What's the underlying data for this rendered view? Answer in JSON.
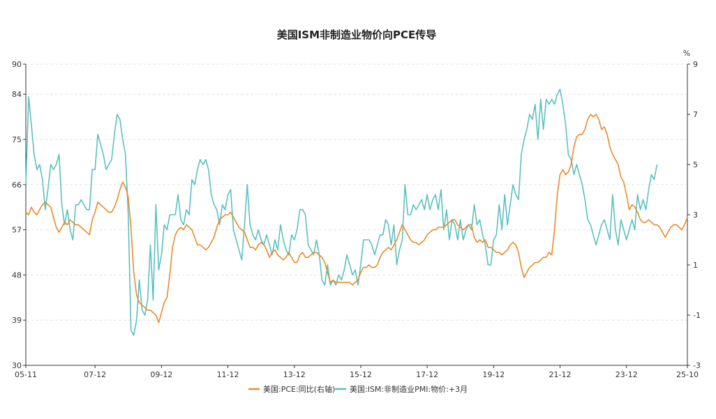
{
  "chart_data": {
    "type": "line",
    "title": "美国ISM非制造业物价向PCE传导",
    "right_unit": "%",
    "left_axis": {
      "ylim": [
        30,
        90
      ],
      "ticks": [
        30,
        39,
        48,
        57,
        66,
        75,
        84,
        90
      ]
    },
    "right_axis": {
      "ylim": [
        -3,
        9
      ],
      "ticks": [
        -3,
        -1,
        1,
        3,
        5,
        7,
        9
      ]
    },
    "x_range": [
      "2005-11",
      "2025-10"
    ],
    "x_tick_labels": [
      "05-11",
      "07-12",
      "09-12",
      "11-12",
      "13-12",
      "15-12",
      "17-12",
      "19-12",
      "21-12",
      "23-12",
      "25-10"
    ],
    "grid": true,
    "legend_position": "bottom",
    "colors": {
      "pce": "#E98B2A",
      "ism": "#5BC0C0"
    },
    "series": [
      {
        "name": "美国:PCE:同比(右轴)",
        "axis": "right",
        "color": "#E98B2A",
        "start": "2005-11",
        "values": [
          3.1,
          3.0,
          3.3,
          3.1,
          3.0,
          3.2,
          3.4,
          3.5,
          3.4,
          3.3,
          2.9,
          2.5,
          2.3,
          2.5,
          2.7,
          2.6,
          2.8,
          2.7,
          2.6,
          2.6,
          2.5,
          2.4,
          2.3,
          2.2,
          2.8,
          3.1,
          3.5,
          3.4,
          3.3,
          3.2,
          3.1,
          3.1,
          3.3,
          3.6,
          4.0,
          4.3,
          4.1,
          3.7,
          2.5,
          0.7,
          -0.2,
          -0.5,
          -0.6,
          -0.7,
          -0.8,
          -0.8,
          -0.9,
          -1.0,
          -1.3,
          -0.9,
          -0.5,
          -0.3,
          0.6,
          1.7,
          2.2,
          2.4,
          2.5,
          2.4,
          2.6,
          2.5,
          2.4,
          2.1,
          1.8,
          1.8,
          1.7,
          1.6,
          1.7,
          1.9,
          2.1,
          2.5,
          2.8,
          2.9,
          3.0,
          3.0,
          3.1,
          2.9,
          2.7,
          2.5,
          2.4,
          2.3,
          2.0,
          1.7,
          1.7,
          1.6,
          1.8,
          1.9,
          1.8,
          1.6,
          1.3,
          1.5,
          1.6,
          1.4,
          1.3,
          1.2,
          1.3,
          1.5,
          1.3,
          1.1,
          1.1,
          1.4,
          1.5,
          1.3,
          1.3,
          1.4,
          1.5,
          1.5,
          1.4,
          1.3,
          1.1,
          0.7,
          0.3,
          0.4,
          0.3,
          0.3,
          0.3,
          0.3,
          0.3,
          0.3,
          0.2,
          0.3,
          0.4,
          0.7,
          0.9,
          0.9,
          1.0,
          0.9,
          0.9,
          1.0,
          1.3,
          1.5,
          1.6,
          1.7,
          1.6,
          1.8,
          2.0,
          2.3,
          2.6,
          2.4,
          2.2,
          2.0,
          1.9,
          1.9,
          1.8,
          1.9,
          2.0,
          2.2,
          2.3,
          2.4,
          2.4,
          2.5,
          2.5,
          2.5,
          2.6,
          2.7,
          2.8,
          2.8,
          2.6,
          2.5,
          2.4,
          2.5,
          2.6,
          2.6,
          2.1,
          1.9,
          2.0,
          1.9,
          2.0,
          1.7,
          1.7,
          1.6,
          1.5,
          1.5,
          1.4,
          1.5,
          1.6,
          1.8,
          1.9,
          1.8,
          1.5,
          0.9,
          0.5,
          0.7,
          0.9,
          1.0,
          1.1,
          1.1,
          1.2,
          1.3,
          1.3,
          1.5,
          1.4,
          2.4,
          3.8,
          4.6,
          4.8,
          4.6,
          4.7,
          5.0,
          5.7,
          6.1,
          6.2,
          6.2,
          6.4,
          6.8,
          7.0,
          6.9,
          7.0,
          6.8,
          6.4,
          6.5,
          6.2,
          5.7,
          5.4,
          5.2,
          5.0,
          4.5,
          4.3,
          3.8,
          3.2,
          3.4,
          3.3,
          3.1,
          2.8,
          2.7,
          2.7,
          2.8,
          2.7,
          2.6,
          2.6,
          2.5,
          2.3,
          2.1,
          2.3,
          2.5,
          2.6,
          2.6,
          2.5,
          2.4,
          2.6,
          2.9
        ]
      },
      {
        "name": "美国:ISM:非制造业PMI:物价:+3月",
        "axis": "left",
        "color": "#5BC0C0",
        "start": "2005-11",
        "values": [
          66.0,
          83.5,
          78.0,
          72.0,
          69.0,
          70.0,
          67.0,
          61.0,
          65.0,
          70.0,
          69.0,
          70.0,
          72.0,
          62.0,
          58.0,
          61.0,
          57.0,
          55.0,
          62.0,
          62.0,
          63.0,
          62.0,
          61.0,
          61.0,
          69.0,
          69.0,
          76.0,
          74.0,
          72.0,
          69.0,
          70.0,
          71.0,
          76.0,
          80.0,
          79.0,
          75.0,
          72.0,
          60.0,
          37.0,
          36.0,
          39.0,
          47.0,
          41.0,
          40.0,
          43.0,
          54.0,
          43.0,
          62.0,
          49.0,
          52.0,
          58.0,
          57.0,
          60.0,
          60.0,
          60.0,
          64.0,
          59.0,
          58.0,
          61.0,
          60.0,
          67.0,
          66.0,
          69.0,
          71.0,
          70.0,
          71.0,
          69.0,
          64.0,
          62.0,
          61.0,
          58.0,
          62.0,
          61.0,
          64.0,
          65.0,
          57.0,
          55.0,
          53.0,
          51.0,
          58.0,
          66.0,
          58.0,
          56.0,
          55.0,
          57.0,
          55.0,
          54.0,
          56.0,
          54.0,
          52.0,
          55.0,
          53.0,
          58.0,
          55.0,
          53.0,
          52.0,
          56.0,
          55.0,
          57.0,
          61.0,
          61.0,
          60.0,
          54.0,
          53.0,
          52.0,
          55.0,
          52.0,
          47.0,
          46.0,
          50.0,
          46.0,
          47.0,
          46.0,
          48.0,
          47.0,
          49.0,
          52.0,
          50.0,
          48.0,
          49.0,
          46.0,
          50.0,
          55.0,
          55.0,
          55.0,
          54.0,
          52.0,
          54.0,
          56.0,
          56.0,
          59.0,
          58.0,
          54.0,
          58.0,
          50.0,
          53.0,
          55.0,
          66.0,
          60.0,
          60.0,
          62.0,
          61.0,
          62.0,
          63.0,
          61.0,
          64.0,
          61.0,
          63.0,
          64.0,
          61.0,
          65.0,
          57.0,
          61.0,
          55.0,
          59.0,
          58.0,
          55.0,
          59.0,
          55.0,
          57.0,
          58.0,
          57.0,
          62.0,
          58.0,
          59.0,
          56.0,
          54.0,
          50.0,
          50.0,
          55.0,
          56.0,
          62.0,
          57.0,
          64.0,
          58.0,
          62.0,
          66.0,
          64.0,
          63.0,
          72.0,
          75.0,
          77.0,
          80.0,
          79.0,
          82.0,
          75.0,
          83.0,
          77.0,
          83.0,
          82.0,
          83.0,
          82.0,
          84.0,
          85.0,
          82.0,
          78.0,
          72.0,
          71.0,
          68.0,
          70.0,
          68.0,
          66.0,
          63.0,
          59.0,
          58.0,
          56.0,
          54.0,
          56.0,
          58.0,
          59.0,
          57.0,
          55.0,
          64.0,
          57.0,
          54.0,
          59.0,
          57.0,
          55.0,
          57.0,
          59.0,
          57.0,
          64.0,
          61.0,
          63.0,
          61.0,
          65.0,
          68.0,
          67.0,
          70.0
        ]
      }
    ],
    "legend": [
      "美国:PCE:同比(右轴)",
      "美国:ISM:非制造业PMI:物价:+3月"
    ]
  }
}
